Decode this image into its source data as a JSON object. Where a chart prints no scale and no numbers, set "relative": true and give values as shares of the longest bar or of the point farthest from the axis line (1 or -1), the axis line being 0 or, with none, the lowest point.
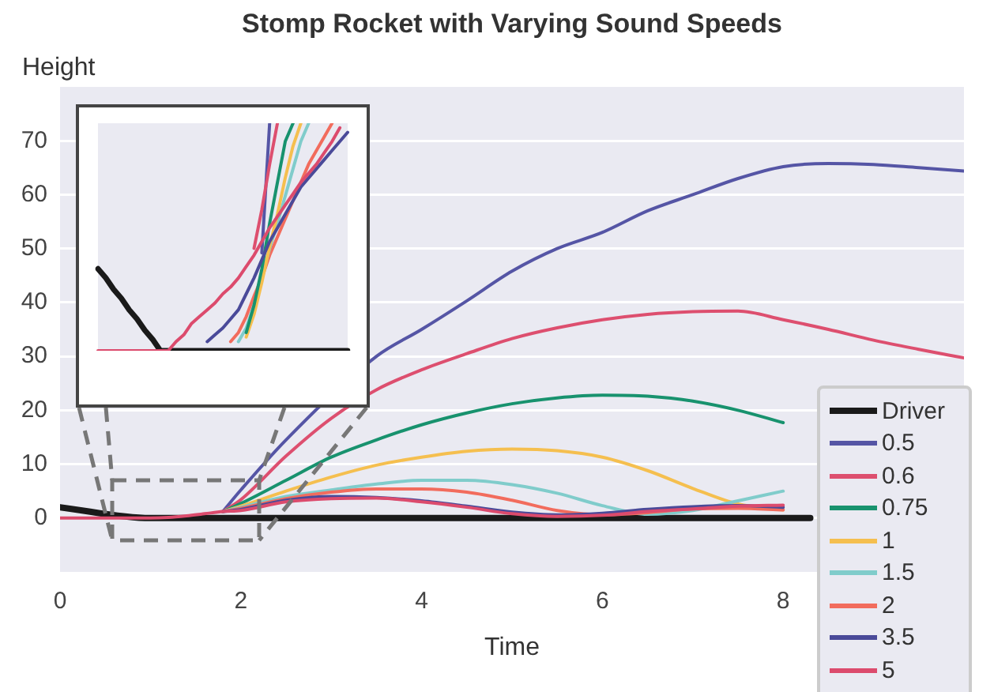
{
  "chart_data": [
    {
      "type": "line",
      "title": "Stomp Rocket with Varying Sound Speeds",
      "xlabel": "Time",
      "ylabel": "Height",
      "xlim": [
        0,
        10
      ],
      "xticks": [
        0,
        2,
        4,
        6,
        8
      ],
      "ylim": [
        -10,
        80
      ],
      "yticks": [
        0,
        10,
        20,
        30,
        40,
        50,
        60,
        70
      ],
      "grid": "y",
      "legend": "bottom right",
      "series": [
        {
          "name": "Driver",
          "color": "#1a1a1a",
          "x": [
            0,
            1,
            8.3
          ],
          "values": [
            2,
            0,
            0
          ]
        },
        {
          "name": "0.5",
          "color": "#5555a5",
          "x": [
            1.8,
            2,
            2.5,
            3.5,
            4,
            4.5,
            5,
            5.5,
            6,
            6.5,
            7,
            7.5,
            8,
            8.5,
            9,
            9.5,
            10
          ],
          "values": [
            1.2,
            5.2,
            14.5,
            30,
            35,
            40.3,
            45.8,
            50,
            53,
            57,
            60,
            63,
            65.2,
            65.8,
            65.6,
            65,
            64.4
          ]
        },
        {
          "name": "0.6",
          "color": "#dd4f6f",
          "x": [
            1.8,
            2,
            2.5,
            3,
            3.5,
            4,
            4.5,
            5,
            5.5,
            6,
            6.5,
            7,
            7.5,
            8,
            8.5,
            9,
            9.5,
            10
          ],
          "values": [
            1.2,
            3.4,
            11.5,
            18.5,
            23.8,
            27.5,
            30.5,
            33.3,
            35.3,
            36.8,
            37.8,
            38.3,
            38.4,
            36.8,
            35,
            33,
            31.3,
            29.7
          ]
        },
        {
          "name": "0.75",
          "color": "#18926e",
          "x": [
            1.8,
            2,
            2.5,
            3,
            3.5,
            4,
            4.5,
            5,
            5.5,
            6,
            6.5,
            7,
            7.5,
            8
          ],
          "values": [
            1.2,
            2.7,
            7,
            11.3,
            14.5,
            17.3,
            19.5,
            21.2,
            22.3,
            22.8,
            22.6,
            21.7,
            20,
            17.7
          ]
        },
        {
          "name": "1",
          "color": "#f5bf4f",
          "x": [
            1.8,
            2,
            2.5,
            3,
            3.5,
            4,
            4.5,
            5,
            5.5,
            6,
            6.5,
            7,
            7.5,
            8
          ],
          "values": [
            1.2,
            2.2,
            5,
            7.6,
            9.8,
            11.3,
            12.4,
            12.8,
            12.5,
            11.3,
            8.8,
            5.5,
            2.6,
            1.5
          ]
        },
        {
          "name": "1.5",
          "color": "#80cccb",
          "x": [
            1.8,
            2,
            2.5,
            3,
            3.5,
            4,
            4.5,
            5,
            5.5,
            6,
            6.5,
            7,
            7.5,
            8
          ],
          "values": [
            1.2,
            2,
            4,
            5.2,
            6.3,
            7,
            7,
            6.2,
            4.6,
            2.3,
            0.7,
            1.4,
            3.2,
            5
          ]
        },
        {
          "name": "2",
          "color": "#f26c5d",
          "x": [
            1.8,
            2,
            2.5,
            3,
            3.5,
            4,
            4.5,
            5,
            5.5,
            6,
            6.5,
            7,
            7.5,
            8
          ],
          "values": [
            1.2,
            1.8,
            3.6,
            4.8,
            5.4,
            5.4,
            4.8,
            3.3,
            1.4,
            0.6,
            1,
            1.7,
            1.8,
            1.5
          ]
        },
        {
          "name": "3.5",
          "color": "#4a4a99",
          "x": [
            1.8,
            2,
            2.5,
            3,
            3.5,
            4,
            4.5,
            5,
            5.5,
            6,
            6.5,
            7,
            7.5,
            8
          ],
          "values": [
            1.2,
            1.6,
            3.3,
            4,
            3.8,
            3.2,
            2.2,
            1.1,
            0.6,
            0.9,
            1.6,
            2.1,
            2.3,
            2
          ]
        },
        {
          "name": "5",
          "color": "#dc4b6d",
          "x": [
            0,
            1,
            1.2,
            1.4,
            1.6,
            1.8,
            2,
            2.5,
            3,
            3.5,
            4,
            4.5,
            5,
            5.5,
            6,
            6.5,
            7,
            7.5,
            8
          ],
          "values": [
            0,
            0,
            0.1,
            0.4,
            0.8,
            1.2,
            1.4,
            3,
            3.6,
            3.7,
            3,
            2,
            0.8,
            0.3,
            0.5,
            1.2,
            1.7,
            2.2,
            2.4
          ]
        }
      ]
    },
    {
      "type": "line",
      "relative": true,
      "categories": [
        null,
        null,
        null,
        null,
        null,
        null,
        null,
        null,
        null,
        null,
        null,
        null,
        null,
        null,
        null,
        null,
        null,
        null,
        null,
        null,
        null,
        null,
        null,
        null,
        null,
        null,
        null,
        null,
        null,
        null,
        null,
        null,
        null
      ],
      "series": [
        {
          "color": "#1a1a1a",
          "values": [
            0.36,
            0.32,
            0.27,
            0.23,
            0.18,
            0.14,
            0.09,
            0.05,
            0,
            0,
            0,
            0,
            0,
            0,
            0,
            0,
            0,
            0,
            0,
            0,
            0,
            0,
            0,
            0,
            0,
            0,
            0,
            0,
            0,
            0,
            0,
            0,
            0
          ]
        },
        {
          "color": "#f26c5d",
          "values": [
            null,
            null,
            null,
            null,
            null,
            null,
            null,
            null,
            null,
            null,
            null,
            null,
            null,
            null,
            null,
            null,
            null,
            0.04,
            0.08,
            0.15,
            0.24,
            0.32,
            0.42,
            0.5,
            0.58,
            0.66,
            0.74,
            0.82,
            0.88,
            0.94,
            1,
            null,
            null
          ]
        },
        {
          "color": "#80cccb",
          "values": [
            null,
            null,
            null,
            null,
            null,
            null,
            null,
            null,
            null,
            null,
            null,
            null,
            null,
            null,
            null,
            null,
            null,
            null,
            0.04,
            0.1,
            0.2,
            0.32,
            0.45,
            0.56,
            0.68,
            0.8,
            0.92,
            1,
            null,
            null,
            null,
            null,
            null
          ]
        },
        {
          "color": "#f5bf4f",
          "values": [
            null,
            null,
            null,
            null,
            null,
            null,
            null,
            null,
            null,
            null,
            null,
            null,
            null,
            null,
            null,
            null,
            null,
            null,
            null,
            0.06,
            0.16,
            0.3,
            0.46,
            0.6,
            0.76,
            0.9,
            1,
            null,
            null,
            null,
            null,
            null,
            null
          ]
        },
        {
          "color": "#18926e",
          "values": [
            null,
            null,
            null,
            null,
            null,
            null,
            null,
            null,
            null,
            null,
            null,
            null,
            null,
            null,
            null,
            null,
            null,
            null,
            null,
            0.08,
            0.2,
            0.36,
            0.56,
            0.74,
            0.92,
            1,
            null,
            null,
            null,
            null,
            null,
            null,
            null
          ]
        },
        {
          "color": "#4a4a99",
          "values": [
            null,
            null,
            null,
            null,
            null,
            null,
            null,
            null,
            null,
            null,
            null,
            null,
            null,
            null,
            0.04,
            0.07,
            0.1,
            0.14,
            0.18,
            0.25,
            0.32,
            0.4,
            0.48,
            0.54,
            0.6,
            0.66,
            0.72,
            0.76,
            0.8,
            0.84,
            0.88,
            0.92,
            0.96
          ]
        },
        {
          "color": "#5555a5",
          "values": [
            null,
            null,
            null,
            null,
            null,
            null,
            null,
            null,
            null,
            null,
            null,
            null,
            null,
            null,
            null,
            null,
            null,
            null,
            null,
            null,
            null,
            0.43,
            1,
            null,
            null,
            null,
            null,
            null,
            null,
            null,
            null,
            null,
            null
          ]
        },
        {
          "color": "#dd4f6f",
          "values": [
            null,
            null,
            null,
            null,
            null,
            null,
            null,
            null,
            null,
            null,
            null,
            null,
            null,
            null,
            null,
            null,
            null,
            null,
            null,
            null,
            0.45,
            0.62,
            0.82,
            1,
            null,
            null,
            null,
            null,
            null,
            null,
            null,
            null,
            null
          ]
        },
        {
          "color": "#dc4b6d",
          "values": [
            0,
            0,
            0,
            0,
            0,
            0,
            0,
            0,
            0,
            0,
            0.04,
            0.07,
            0.12,
            0.15,
            0.18,
            0.21,
            0.25,
            0.28,
            0.32,
            0.37,
            0.42,
            0.48,
            0.54,
            0.59,
            0.64,
            0.69,
            0.74,
            0.78,
            0.82,
            0.87,
            0.92,
            0.98,
            null
          ]
        }
      ]
    }
  ]
}
